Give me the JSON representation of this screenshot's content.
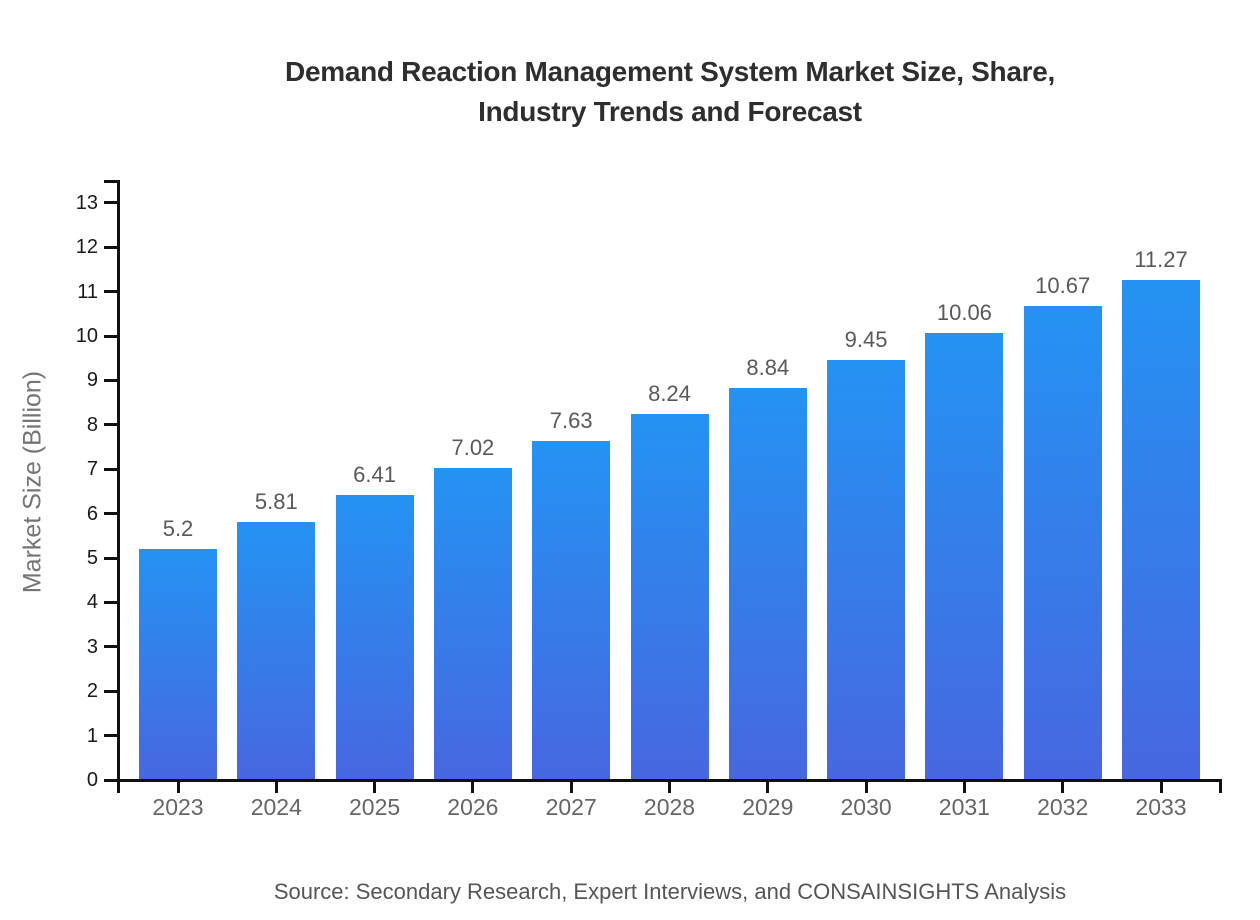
{
  "chart_data": {
    "type": "bar",
    "title": "Demand Reaction Management System Market Size, Share,\nIndustry Trends and Forecast",
    "categories": [
      "2023",
      "2024",
      "2025",
      "2026",
      "2027",
      "2028",
      "2029",
      "2030",
      "2031",
      "2032",
      "2033"
    ],
    "values": [
      5.2,
      5.81,
      6.41,
      7.02,
      7.63,
      8.24,
      8.84,
      9.45,
      10.06,
      10.67,
      11.27
    ],
    "value_labels": [
      "5.2",
      "5.81",
      "6.41",
      "7.02",
      "7.63",
      "8.24",
      "8.84",
      "9.45",
      "10.06",
      "10.67",
      "11.27"
    ],
    "xlabel": "",
    "ylabel": "Market Size (Billion)",
    "yticks": [
      0,
      1,
      2,
      3,
      4,
      5,
      6,
      7,
      8,
      9,
      10,
      11,
      12,
      13
    ],
    "ylim": [
      0,
      13
    ],
    "grid": false,
    "legend_position": "none",
    "source_note": "Source: Secondary Research, Expert Interviews, and CONSAINSIGHTS Analysis"
  },
  "colors": {
    "title": "#2e2e2e",
    "axis": "#111111",
    "ytick_label": "#1a1a1a",
    "xtick_label": "#666666",
    "value_label": "#595959",
    "ylabel": "#757575",
    "source": "#555555",
    "bar_gradient_top": "#2493F3",
    "bar_gradient_bottom": "#4767E0"
  }
}
